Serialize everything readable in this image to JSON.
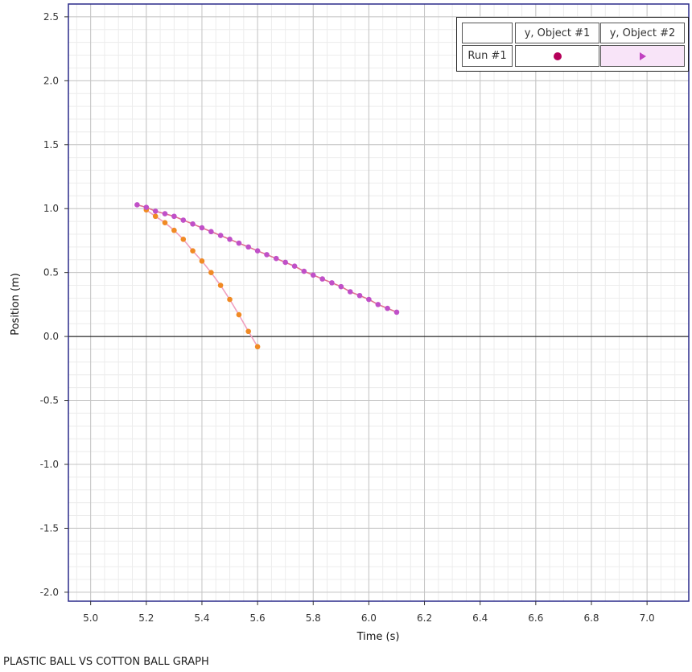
{
  "chart_data": {
    "type": "scatter",
    "title": "PLASTIC BALL VS COTTON BALL GRAPH",
    "xlabel": "Time (s)",
    "ylabel": "Position (m)",
    "xlim": [
      4.92,
      7.15
    ],
    "ylim": [
      -2.07,
      2.6
    ],
    "x_ticks": [
      "5.0",
      "5.2",
      "5.4",
      "5.6",
      "5.8",
      "6.0",
      "6.2",
      "6.4",
      "6.6",
      "6.8",
      "7.0"
    ],
    "y_ticks": [
      "2.5",
      "2.0",
      "1.5",
      "1.0",
      "0.5",
      "0.0",
      "-0.5",
      "-1.0",
      "-1.5",
      "-2.0"
    ],
    "grid": true,
    "legend_position": "top-right",
    "legend": {
      "corner": "",
      "row_label": "Run #1",
      "columns": [
        "y, Object #1",
        "y, Object #2"
      ]
    },
    "series": [
      {
        "name": "y, Object #1",
        "marker": "circle",
        "x": [
          5.2,
          5.233,
          5.267,
          5.3,
          5.333,
          5.367,
          5.4,
          5.433,
          5.467,
          5.5,
          5.533,
          5.567,
          5.6
        ],
        "y": [
          0.99,
          0.94,
          0.89,
          0.83,
          0.76,
          0.67,
          0.59,
          0.5,
          0.4,
          0.29,
          0.17,
          0.04,
          -0.08
        ]
      },
      {
        "name": "y, Object #2",
        "marker": "triangle",
        "x": [
          5.167,
          5.2,
          5.233,
          5.267,
          5.3,
          5.333,
          5.367,
          5.4,
          5.433,
          5.467,
          5.5,
          5.533,
          5.567,
          5.6,
          5.633,
          5.667,
          5.7,
          5.733,
          5.767,
          5.8,
          5.833,
          5.867,
          5.9,
          5.933,
          5.967,
          6.0,
          6.033,
          6.067,
          6.1
        ],
        "y": [
          1.03,
          1.01,
          0.98,
          0.96,
          0.94,
          0.91,
          0.88,
          0.85,
          0.82,
          0.79,
          0.76,
          0.73,
          0.7,
          0.67,
          0.64,
          0.61,
          0.58,
          0.55,
          0.51,
          0.48,
          0.45,
          0.42,
          0.39,
          0.35,
          0.32,
          0.29,
          0.25,
          0.22,
          0.19
        ]
      }
    ]
  },
  "colors": {
    "object1_marker": "#f08a24",
    "object1_line": "#f0a0c0",
    "object2_marker": "#c050c8",
    "object2_line": "#e07090",
    "legend_dot": "#b5005a",
    "legend_triangle": "#c040c0",
    "legend_triangle_bg": "#f8e4f8",
    "plot_border": "#2a2a8a"
  }
}
